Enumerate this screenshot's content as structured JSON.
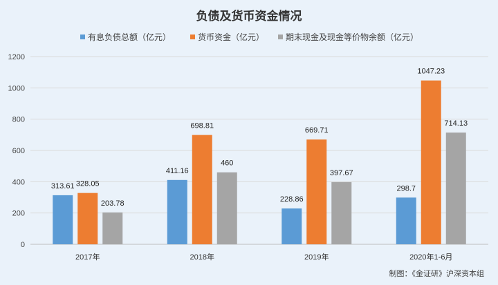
{
  "chart_data": {
    "type": "bar",
    "title": "负债及货币资金情况",
    "categories": [
      "2017年",
      "2018年",
      "2019年",
      "2020年1-6月"
    ],
    "series": [
      {
        "name": "有息负债总额（亿元）",
        "color": "#5b9bd5",
        "values": [
          313.61,
          411.16,
          228.86,
          298.7
        ],
        "labels": [
          "313.61",
          "411.16",
          "228.86",
          "298.7"
        ]
      },
      {
        "name": "货币资金（亿元）",
        "color": "#ed7d31",
        "values": [
          328.05,
          698.81,
          669.71,
          1047.23
        ],
        "labels": [
          "328.05",
          "698.81",
          "669.71",
          "1047.23"
        ]
      },
      {
        "name": "期末现金及现金等价物余额（亿元）",
        "color": "#a5a5a5",
        "values": [
          203.78,
          460,
          397.67,
          714.13
        ],
        "labels": [
          "203.78",
          "460",
          "397.67",
          "714.13"
        ]
      }
    ],
    "ylim": [
      0,
      1200
    ],
    "yticks": [
      "0",
      "200",
      "400",
      "600",
      "800",
      "1000",
      "1200"
    ],
    "grid": true,
    "legend_position": "top",
    "source": "制图：《金证研》沪深资本组"
  }
}
